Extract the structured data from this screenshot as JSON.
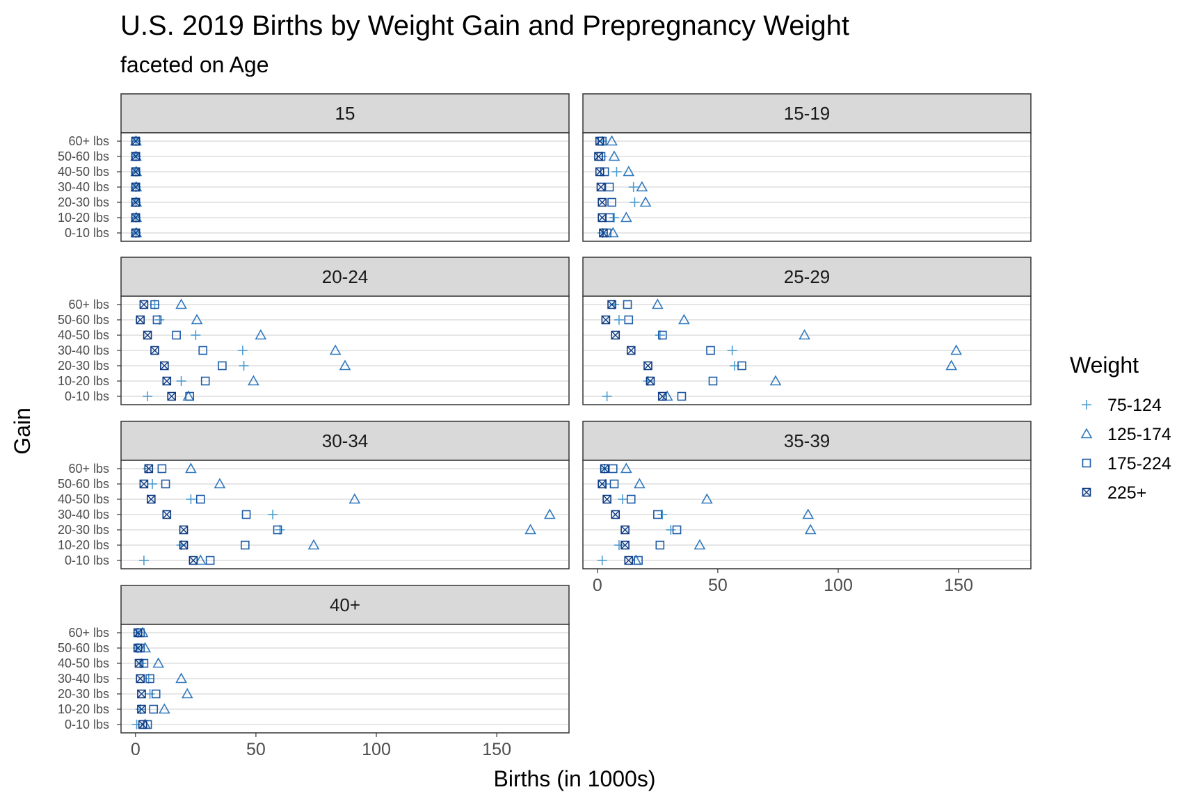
{
  "chart_data": {
    "type": "scatter",
    "title": "U.S. 2019 Births by Weight Gain and Prepregnancy Weight",
    "subtitle": "faceted on Age",
    "xlabel": "Births (in 1000s)",
    "ylabel": "Gain",
    "xlim": [
      -6,
      180
    ],
    "x_ticks": [
      0,
      50,
      100,
      150
    ],
    "categories": [
      "0-10 lbs",
      "10-20 lbs",
      "20-30 lbs",
      "30-40 lbs",
      "40-50 lbs",
      "50-60 lbs",
      "60+ lbs"
    ],
    "grid": true,
    "legend": {
      "title": "Weight",
      "position": "right",
      "items": [
        {
          "name": "75-124",
          "shape": "plus",
          "color": "#4a9bd1"
        },
        {
          "name": "125-174",
          "shape": "triangle",
          "color": "#2f78bd"
        },
        {
          "name": "175-224",
          "shape": "square",
          "color": "#1c5aa6"
        },
        {
          "name": "225+",
          "shape": "square-x",
          "color": "#0d3a82"
        }
      ]
    },
    "facets": [
      {
        "label": "15",
        "series": [
          {
            "name": "75-124",
            "values": [
              0.2,
              0.2,
              0.2,
              0.2,
              0.2,
              0.2,
              0.2
            ]
          },
          {
            "name": "125-174",
            "values": [
              0.3,
              0.3,
              0.3,
              0.3,
              0.3,
              0.2,
              0.2
            ]
          },
          {
            "name": "175-224",
            "values": [
              0.1,
              0.1,
              0.1,
              0.1,
              0.1,
              0.1,
              0.1
            ]
          },
          {
            "name": "225+",
            "values": [
              0.1,
              0.1,
              0.1,
              0.1,
              0.1,
              0.1,
              0.1
            ]
          }
        ]
      },
      {
        "label": "15-19",
        "series": [
          {
            "name": "75-124",
            "values": [
              2,
              7,
              15.5,
              15,
              8,
              2,
              2
            ]
          },
          {
            "name": "125-174",
            "values": [
              6.5,
              12,
              20,
              18.5,
              13,
              7,
              6
            ]
          },
          {
            "name": "175-224",
            "values": [
              4,
              5,
              6,
              5,
              3,
              1.5,
              2
            ]
          },
          {
            "name": "225+",
            "values": [
              2.5,
              2,
              2,
              1.5,
              1,
              0.5,
              1
            ]
          }
        ]
      },
      {
        "label": "20-24",
        "series": [
          {
            "name": "75-124",
            "values": [
              5,
              19,
              45,
              44.5,
              25,
              10,
              8
            ]
          },
          {
            "name": "125-174",
            "values": [
              22,
              49,
              87,
              83,
              52,
              25.5,
              19
            ]
          },
          {
            "name": "175-224",
            "values": [
              22.5,
              29,
              36,
              28,
              17,
              9,
              8
            ]
          },
          {
            "name": "225+",
            "values": [
              15,
              13,
              12,
              8,
              5,
              2,
              3.5
            ]
          }
        ]
      },
      {
        "label": "25-29",
        "series": [
          {
            "name": "75-124",
            "values": [
              4,
              21,
              57,
              56,
              26,
              9,
              7
            ]
          },
          {
            "name": "125-174",
            "values": [
              29,
              74,
              147,
              149,
              86,
              36,
              25
            ]
          },
          {
            "name": "175-224",
            "values": [
              35,
              48,
              60,
              47,
              27,
              13,
              12.5
            ]
          },
          {
            "name": "225+",
            "values": [
              27,
              22,
              21,
              14,
              7.5,
              3.5,
              6
            ]
          }
        ]
      },
      {
        "label": "30-34",
        "series": [
          {
            "name": "75-124",
            "values": [
              3.5,
              19,
              60,
              57,
              23,
              7,
              5
            ]
          },
          {
            "name": "125-174",
            "values": [
              27,
              74,
              164,
              172,
              91,
              35,
              23
            ]
          },
          {
            "name": "175-224",
            "values": [
              31,
              45.5,
              59,
              46,
              27,
              12.5,
              11
            ]
          },
          {
            "name": "225+",
            "values": [
              24,
              20,
              20,
              13,
              6.5,
              3.5,
              5.5
            ]
          }
        ]
      },
      {
        "label": "35-39",
        "series": [
          {
            "name": "75-124",
            "values": [
              2,
              9,
              30.5,
              27,
              10.5,
              3.5,
              3
            ]
          },
          {
            "name": "125-174",
            "values": [
              16,
              42.5,
              88.5,
              87.5,
              45.5,
              17.5,
              12
            ]
          },
          {
            "name": "175-224",
            "values": [
              17,
              26,
              33,
              25,
              14,
              7,
              6.5
            ]
          },
          {
            "name": "225+",
            "values": [
              13,
              11.5,
              11.5,
              7.5,
              4,
              2,
              3
            ]
          }
        ]
      },
      {
        "label": "40+",
        "series": [
          {
            "name": "75-124",
            "values": [
              0.5,
              2,
              6,
              5.5,
              2.5,
              1,
              1
            ]
          },
          {
            "name": "125-174",
            "values": [
              4,
              12,
              21.5,
              19,
              9.5,
              4,
              3
            ]
          },
          {
            "name": "175-224",
            "values": [
              5,
              7.5,
              8.5,
              6,
              3.5,
              2,
              2
            ]
          },
          {
            "name": "225+",
            "values": [
              3,
              2.5,
              2.5,
              2,
              1.5,
              1,
              1
            ]
          }
        ]
      }
    ]
  }
}
